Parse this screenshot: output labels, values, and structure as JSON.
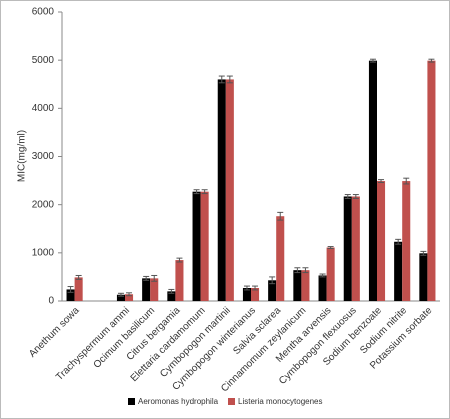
{
  "chart_data": {
    "type": "bar",
    "y_label": "MIC(mg/ml)",
    "categories": [
      "Anethum sowa",
      null,
      "Trachyspermum ammi",
      "Ocimum basilicum",
      "Citrus bergamia",
      "Elettaria cardamomum",
      "Cymbopogon martinii",
      "Cymbopogon winterianus",
      "Salvia sclarea",
      "Cinnamomum zeylanicum",
      "Mentha arvensis",
      "Cymbopogon flexuosus",
      "Sodium benzoate",
      "Sodium nitrite",
      "Potassium sorbate"
    ],
    "series": [
      {
        "name": "Aeromonas hydrophila",
        "color": "#000000",
        "values": [
          240,
          null,
          130,
          470,
          200,
          2270,
          4600,
          270,
          430,
          640,
          530,
          2170,
          4990,
          1230,
          990
        ],
        "errors": [
          60,
          null,
          30,
          40,
          40,
          40,
          70,
          40,
          70,
          50,
          30,
          40,
          30,
          50,
          40
        ]
      },
      {
        "name": "Listeria monocytogenes",
        "color": "#c0504d",
        "values": [
          490,
          null,
          140,
          470,
          850,
          2270,
          4600,
          270,
          1760,
          640,
          1110,
          2170,
          2490,
          2490,
          4990
        ],
        "errors": [
          40,
          null,
          30,
          60,
          40,
          40,
          70,
          40,
          80,
          50,
          20,
          40,
          30,
          60,
          30
        ]
      }
    ],
    "ylim": [
      0,
      6000
    ],
    "yticks": [
      0,
      1000,
      2000,
      3000,
      4000,
      5000,
      6000
    ],
    "grid": false
  }
}
